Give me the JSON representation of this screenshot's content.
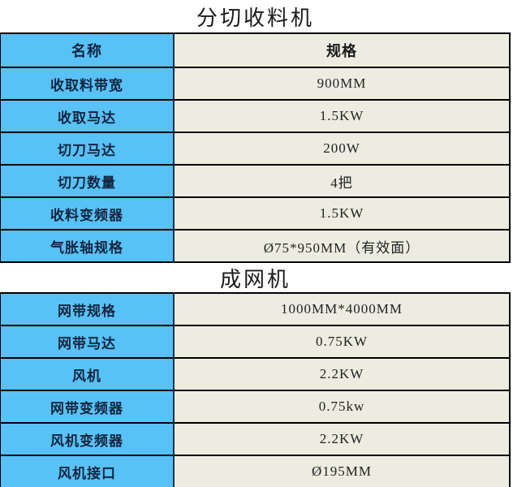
{
  "colors": {
    "label_bg": "#58C1F6",
    "value_bg": "#EDECE1",
    "border_horizontal": "#000000",
    "border_vertical": "#0d2f52",
    "title_text": "#1a1a1a"
  },
  "tables": [
    {
      "title": "分切收料机",
      "header": {
        "name": "名称",
        "spec": "规格"
      },
      "rows": [
        {
          "label": "收取料带宽",
          "value": "900MM"
        },
        {
          "label": "收取马达",
          "value": "1.5KW"
        },
        {
          "label": "切刀马达",
          "value": "200W"
        },
        {
          "label": "切刀数量",
          "value": "4把"
        },
        {
          "label": "收料变频器",
          "value": "1.5KW"
        },
        {
          "label": "气胀轴规格",
          "value": "Ø75*950MM（有效面）"
        }
      ]
    },
    {
      "title": "成网机",
      "rows": [
        {
          "label": "网带规格",
          "value": "1000MM*4000MM"
        },
        {
          "label": "网带马达",
          "value": "0.75KW"
        },
        {
          "label": "风机",
          "value": "2.2KW"
        },
        {
          "label": "网带变频器",
          "value": "0.75kw"
        },
        {
          "label": "风机变频器",
          "value": "2.2KW"
        },
        {
          "label": "风机接口",
          "value": "Ø195MM"
        }
      ]
    }
  ]
}
